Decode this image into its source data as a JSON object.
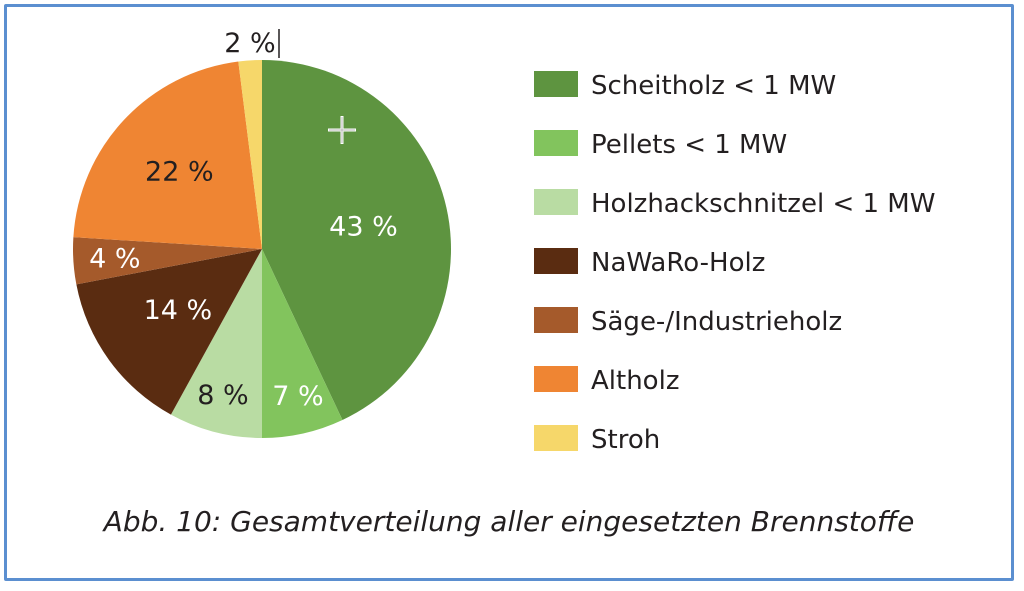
{
  "chart_data": {
    "type": "pie",
    "slices": [
      {
        "label": "Scheitholz < 1 MW",
        "value": 43,
        "display": "43 %",
        "color": "#5e9440",
        "text_color": "#ffffff"
      },
      {
        "label": "Pellets < 1 MW",
        "value": 7,
        "display": "7 %",
        "color": "#82c45d",
        "text_color": "#ffffff"
      },
      {
        "label": "Holzhackschnitzel < 1 MW",
        "value": 8,
        "display": "8 %",
        "color": "#b9dca3",
        "text_color": "#231f20"
      },
      {
        "label": "NaWaRo-Holz",
        "value": 14,
        "display": "14 %",
        "color": "#5a2c11",
        "text_color": "#ffffff"
      },
      {
        "label": "Säge-/Industrieholz",
        "value": 4,
        "display": "4 %",
        "color": "#a55a2b",
        "text_color": "#ffffff"
      },
      {
        "label": "Altholz",
        "value": 22,
        "display": "22 %",
        "color": "#ef8533",
        "text_color": "#231f20"
      },
      {
        "label": "Stroh",
        "value": 2,
        "display": "2 %",
        "color": "#f6d76a",
        "text_color": "#231f20"
      }
    ],
    "legend_position": "right"
  },
  "caption": "Abb. 10: Gesamtverteilung aller eingesetzten Brennstoffe"
}
